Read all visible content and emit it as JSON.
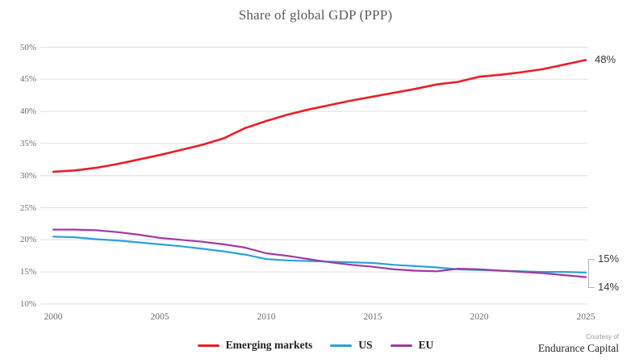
{
  "title": "Share of global GDP (PPP)",
  "chart_data": {
    "type": "line",
    "title": "Share of global GDP (PPP)",
    "xlabel": "",
    "ylabel": "",
    "xlim": [
      2000,
      2025
    ],
    "ylim": [
      10,
      50
    ],
    "grid": "horizontal",
    "legend_position": "bottom",
    "x_ticks": [
      "2000",
      "2005",
      "2010",
      "2015",
      "2020",
      "2025"
    ],
    "y_ticks": [
      "10%",
      "15%",
      "20%",
      "25%",
      "30%",
      "35%",
      "40%",
      "45%",
      "50%"
    ],
    "x": [
      2000,
      2001,
      2002,
      2003,
      2004,
      2005,
      2006,
      2007,
      2008,
      2009,
      2010,
      2011,
      2012,
      2013,
      2014,
      2015,
      2016,
      2017,
      2018,
      2019,
      2020,
      2021,
      2022,
      2023,
      2024,
      2025
    ],
    "series": [
      {
        "name": "Emerging markets",
        "color": "#ed1c24",
        "end_label": "48%",
        "values": [
          30.6,
          30.8,
          31.2,
          31.8,
          32.5,
          33.2,
          34.0,
          34.8,
          35.8,
          37.4,
          38.5,
          39.5,
          40.3,
          41.0,
          41.7,
          42.3,
          42.9,
          43.5,
          44.2,
          44.6,
          45.4,
          45.7,
          46.1,
          46.6,
          47.3,
          48.0
        ]
      },
      {
        "name": "US",
        "color": "#2ba0d9",
        "end_label": "15%",
        "values": [
          20.5,
          20.4,
          20.1,
          19.9,
          19.6,
          19.3,
          19.0,
          18.6,
          18.2,
          17.7,
          17.0,
          16.8,
          16.7,
          16.6,
          16.5,
          16.4,
          16.1,
          15.9,
          15.7,
          15.4,
          15.3,
          15.2,
          15.1,
          15.0,
          15.0,
          14.9
        ]
      },
      {
        "name": "EU",
        "color": "#a03a9f",
        "end_label": "14%",
        "values": [
          21.6,
          21.6,
          21.5,
          21.2,
          20.8,
          20.3,
          20.0,
          19.7,
          19.3,
          18.8,
          17.9,
          17.5,
          17.0,
          16.5,
          16.1,
          15.8,
          15.4,
          15.2,
          15.1,
          15.5,
          15.4,
          15.2,
          15.0,
          14.8,
          14.5,
          14.2
        ]
      }
    ],
    "colors": {
      "grid": "#dedede",
      "bracket": "#b3b3b3",
      "tick_text": "#6e6e6e",
      "title_text": "#595959"
    }
  },
  "branding": {
    "courtesy": "Courtesy of",
    "name": "Endurance Capital"
  }
}
